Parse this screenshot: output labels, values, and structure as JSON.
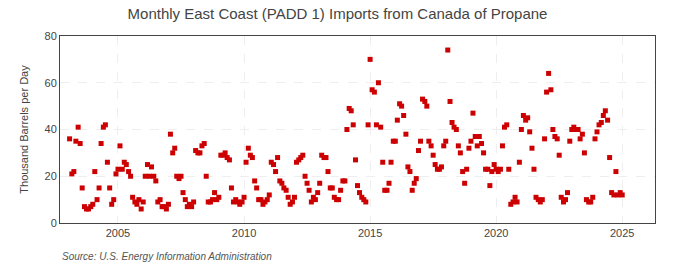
{
  "chart_data": {
    "type": "scatter",
    "title": "Monthly East Coast (PADD 1) Imports from Canada of Propane",
    "ylabel": "Thousand Barrels per Day",
    "annotations": [
      "Source: U.S. Energy Information Administration"
    ],
    "color": "#cc0000",
    "marker": "square",
    "grid": true,
    "xlim": [
      2002.7,
      2026.3
    ],
    "xticks": [
      2005,
      2010,
      2015,
      2020,
      2025
    ],
    "ylim": [
      0,
      80
    ],
    "yticks": [
      0,
      20,
      40,
      60,
      80
    ],
    "x": [
      2003.08,
      2003.17,
      2003.25,
      2003.33,
      2003.42,
      2003.5,
      2003.58,
      2003.67,
      2003.75,
      2003.83,
      2003.92,
      2004.0,
      2004.08,
      2004.17,
      2004.25,
      2004.33,
      2004.42,
      2004.5,
      2004.58,
      2004.67,
      2004.75,
      2004.83,
      2004.92,
      2005.0,
      2005.08,
      2005.17,
      2005.25,
      2005.33,
      2005.42,
      2005.5,
      2005.58,
      2005.67,
      2005.75,
      2005.83,
      2005.92,
      2006.0,
      2006.08,
      2006.17,
      2006.25,
      2006.33,
      2006.42,
      2006.5,
      2006.58,
      2006.67,
      2006.75,
      2006.83,
      2006.92,
      2007.0,
      2007.08,
      2007.17,
      2007.25,
      2007.33,
      2007.42,
      2007.5,
      2007.58,
      2007.67,
      2007.75,
      2007.83,
      2007.92,
      2008.0,
      2008.08,
      2008.17,
      2008.25,
      2008.33,
      2008.42,
      2008.5,
      2008.58,
      2008.67,
      2008.75,
      2008.83,
      2008.92,
      2009.0,
      2009.08,
      2009.17,
      2009.25,
      2009.33,
      2009.42,
      2009.5,
      2009.58,
      2009.67,
      2009.75,
      2009.83,
      2009.92,
      2010.0,
      2010.08,
      2010.17,
      2010.25,
      2010.33,
      2010.42,
      2010.5,
      2010.58,
      2010.67,
      2010.75,
      2010.83,
      2010.92,
      2011.0,
      2011.08,
      2011.17,
      2011.25,
      2011.33,
      2011.42,
      2011.5,
      2011.58,
      2011.67,
      2011.75,
      2011.83,
      2011.92,
      2012.0,
      2012.08,
      2012.17,
      2012.25,
      2012.33,
      2012.42,
      2012.5,
      2012.58,
      2012.67,
      2012.75,
      2012.83,
      2012.92,
      2013.0,
      2013.08,
      2013.17,
      2013.25,
      2013.33,
      2013.42,
      2013.5,
      2013.58,
      2013.67,
      2013.75,
      2013.83,
      2013.92,
      2014.0,
      2014.08,
      2014.17,
      2014.25,
      2014.33,
      2014.42,
      2014.5,
      2014.58,
      2014.67,
      2014.75,
      2014.83,
      2014.92,
      2015.0,
      2015.08,
      2015.17,
      2015.25,
      2015.33,
      2015.42,
      2015.5,
      2015.58,
      2015.67,
      2015.75,
      2015.83,
      2015.92,
      2016.0,
      2016.08,
      2016.17,
      2016.25,
      2016.33,
      2016.42,
      2016.5,
      2016.58,
      2016.67,
      2016.75,
      2016.83,
      2016.92,
      2017.0,
      2017.08,
      2017.17,
      2017.25,
      2017.33,
      2017.42,
      2017.5,
      2017.58,
      2017.67,
      2017.75,
      2017.83,
      2017.92,
      2018.0,
      2018.08,
      2018.17,
      2018.25,
      2018.33,
      2018.42,
      2018.5,
      2018.58,
      2018.67,
      2018.75,
      2018.83,
      2018.92,
      2019.0,
      2019.08,
      2019.17,
      2019.25,
      2019.33,
      2019.42,
      2019.5,
      2019.58,
      2019.67,
      2019.75,
      2019.83,
      2019.92,
      2020.0,
      2020.08,
      2020.17,
      2020.25,
      2020.33,
      2020.42,
      2020.5,
      2020.58,
      2020.67,
      2020.75,
      2020.83,
      2020.92,
      2021.0,
      2021.08,
      2021.17,
      2021.25,
      2021.33,
      2021.42,
      2021.5,
      2021.58,
      2021.67,
      2021.75,
      2021.83,
      2021.92,
      2022.0,
      2022.08,
      2022.17,
      2022.25,
      2022.33,
      2022.42,
      2022.5,
      2022.58,
      2022.67,
      2022.75,
      2022.83,
      2022.92,
      2023.0,
      2023.08,
      2023.17,
      2023.25,
      2023.33,
      2023.42,
      2023.5,
      2023.58,
      2023.67,
      2023.75,
      2023.83,
      2023.92,
      2024.0,
      2024.08,
      2024.17,
      2024.25,
      2024.33,
      2024.42,
      2024.5,
      2024.58,
      2024.67,
      2024.75,
      2024.83,
      2024.92,
      2025.0
    ],
    "values": [
      36,
      21,
      22,
      35,
      41,
      34,
      15,
      7,
      6,
      6,
      7,
      8,
      22,
      10,
      15,
      34,
      41,
      42,
      26,
      15,
      8,
      10,
      21,
      23,
      33,
      23,
      26,
      25,
      22,
      20,
      11,
      9,
      8,
      10,
      6,
      9,
      20,
      25,
      20,
      24,
      20,
      18,
      9,
      10,
      7,
      7,
      6,
      8,
      38,
      30,
      32,
      20,
      19,
      20,
      13,
      10,
      7,
      8,
      7,
      9,
      31,
      30,
      30,
      33,
      34,
      20,
      9,
      9,
      10,
      13,
      10,
      11,
      29,
      29,
      30,
      28,
      27,
      15,
      9,
      10,
      9,
      8,
      9,
      11,
      26,
      32,
      29,
      28,
      18,
      15,
      10,
      10,
      8,
      9,
      10,
      12,
      26,
      25,
      22,
      28,
      18,
      17,
      15,
      14,
      11,
      8,
      9,
      11,
      26,
      27,
      28,
      29,
      20,
      17,
      14,
      9,
      11,
      10,
      13,
      17,
      29,
      28,
      28,
      22,
      15,
      15,
      11,
      10,
      10,
      14,
      18,
      18,
      40,
      49,
      48,
      42,
      27,
      16,
      13,
      11,
      10,
      9,
      42,
      70,
      57,
      56,
      42,
      60,
      41,
      26,
      14,
      14,
      17,
      26,
      35,
      35,
      44,
      51,
      50,
      46,
      38,
      24,
      22,
      14,
      17,
      19,
      31,
      35,
      53,
      52,
      50,
      35,
      33,
      29,
      25,
      23,
      23,
      24,
      33,
      35,
      74,
      52,
      43,
      41,
      40,
      33,
      30,
      22,
      17,
      23,
      32,
      35,
      47,
      37,
      33,
      37,
      34,
      30,
      23,
      23,
      16,
      22,
      25,
      23,
      22,
      23,
      33,
      41,
      42,
      23,
      8,
      9,
      11,
      9,
      26,
      40,
      46,
      44,
      45,
      39,
      32,
      23,
      11,
      10,
      9,
      10,
      36,
      56,
      64,
      57,
      40,
      37,
      36,
      29,
      11,
      9,
      10,
      13,
      35,
      40,
      41,
      40,
      40,
      36,
      38,
      30,
      10,
      9,
      9,
      11,
      36,
      39,
      42,
      43,
      46,
      48,
      44,
      28,
      13,
      12,
      22,
      12,
      13,
      12
    ]
  }
}
